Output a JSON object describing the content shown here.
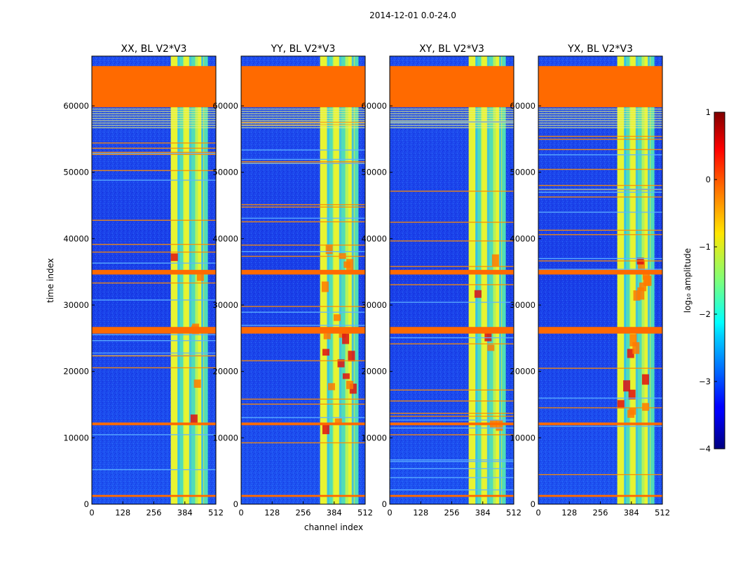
{
  "suptitle": "2014-12-01 0.0-24.0",
  "chart_data": {
    "type": "heatmap",
    "title": "2014-12-01 0.0-24.0",
    "xlabel": "channel index",
    "ylabel": "time index",
    "xlim": [
      0,
      512
    ],
    "ylim": [
      0,
      67500
    ],
    "xticks": [
      0,
      128,
      256,
      384,
      512
    ],
    "yticks": [
      0,
      10000,
      20000,
      30000,
      40000,
      50000,
      60000
    ],
    "panels": [
      {
        "name": "XX",
        "title": "XX, BL V2*V3"
      },
      {
        "name": "YY",
        "title": "YY, BL V2*V3"
      },
      {
        "name": "XY",
        "title": "XY, BL V2*V3"
      },
      {
        "name": "YX",
        "title": "YX, BL V2*V3"
      }
    ],
    "bright_band_channels": [
      326,
      512
    ],
    "flagged_rows_time": [
      {
        "start": 59800,
        "end": 66000
      },
      {
        "start": 34600,
        "end": 35300
      },
      {
        "start": 25700,
        "end": 26700
      },
      {
        "start": 11900,
        "end": 12300
      },
      {
        "start": 1100,
        "end": 1400
      }
    ],
    "colorbar": {
      "label": "log₁₀ amplitude",
      "ticks": [
        1,
        0,
        -1,
        -2,
        -3,
        -4
      ],
      "min": -4,
      "max": 1
    }
  }
}
